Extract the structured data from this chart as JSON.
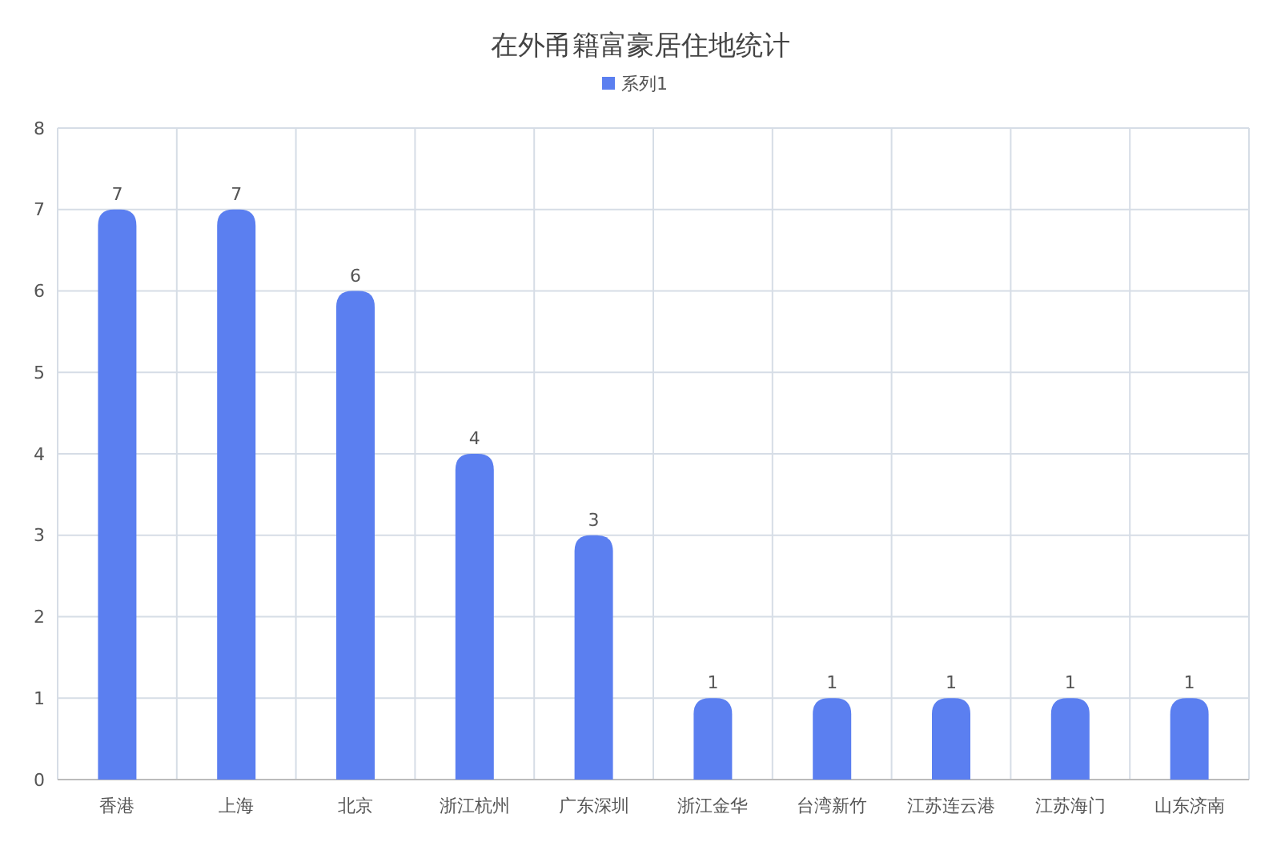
{
  "chart_data": {
    "type": "bar",
    "title": "在外甬籍富豪居住地统计",
    "categories": [
      "香港",
      "上海",
      "北京",
      "浙江杭州",
      "广东深圳",
      "浙江金华",
      "台湾新竹",
      "江苏连云港",
      "江苏海门",
      "山东济南"
    ],
    "series": [
      {
        "name": "系列1",
        "color": "#5b7ff0",
        "values": [
          7,
          7,
          6,
          4,
          3,
          1,
          1,
          1,
          1,
          1
        ]
      }
    ],
    "ylim": [
      0,
      8
    ],
    "yticks": [
      0,
      1,
      2,
      3,
      4,
      5,
      6,
      7,
      8
    ],
    "grid": true,
    "legend": "top",
    "data_labels": true
  }
}
